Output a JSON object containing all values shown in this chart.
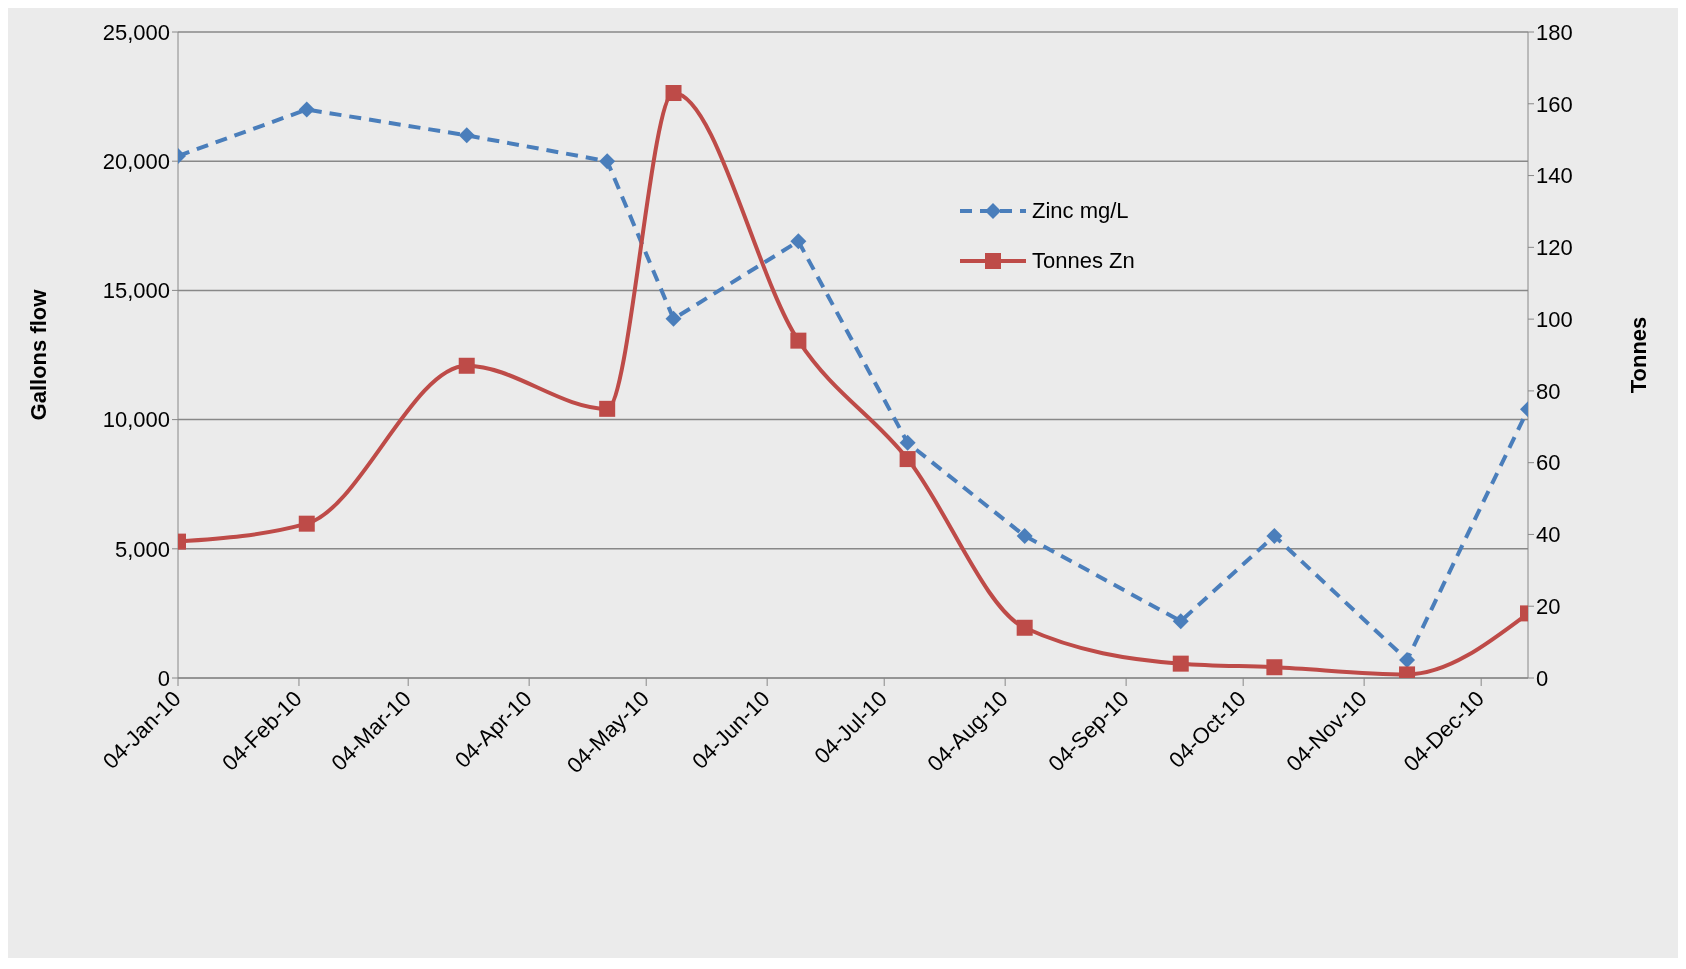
{
  "chart_data": {
    "type": "line",
    "ylabel": "Gallons flow",
    "y2label": "Tonnes",
    "x": [
      "2010-01-04",
      "2010-02-06",
      "2010-03-19",
      "2010-04-24",
      "2010-05-11",
      "2010-06-12",
      "2010-07-10",
      "2010-08-09",
      "2010-09-18",
      "2010-10-12",
      "2010-11-15",
      "2010-12-16"
    ],
    "series": [
      {
        "name": "Zinc mg/L",
        "color": "#4a7ebb",
        "marker": "diamond",
        "line_style": "dashed",
        "values": [
          20200,
          22000,
          21000,
          20000,
          13900,
          16900,
          9100,
          5500,
          2200,
          5500,
          700,
          10400
        ]
      },
      {
        "name": "Tonnes Zn",
        "color": "#be4b48",
        "marker": "square",
        "line_style": "solid",
        "axis": "y2",
        "values": [
          38,
          43,
          87,
          75,
          163,
          94,
          61,
          14,
          4,
          3,
          1,
          18
        ]
      }
    ],
    "xlim": [
      "2010-01-04",
      "2010-12-16"
    ],
    "xticks": [
      {
        "value": "2010-01-04",
        "label": "04-Jan-10"
      },
      {
        "value": "2010-02-04",
        "label": "04-Feb-10"
      },
      {
        "value": "2010-03-04",
        "label": "04-Mar-10"
      },
      {
        "value": "2010-04-04",
        "label": "04-Apr-10"
      },
      {
        "value": "2010-05-04",
        "label": "04-May-10"
      },
      {
        "value": "2010-06-04",
        "label": "04-Jun-10"
      },
      {
        "value": "2010-07-04",
        "label": "04-Jul-10"
      },
      {
        "value": "2010-08-04",
        "label": "04-Aug-10"
      },
      {
        "value": "2010-09-04",
        "label": "04-Sep-10"
      },
      {
        "value": "2010-10-04",
        "label": "04-Oct-10"
      },
      {
        "value": "2010-11-04",
        "label": "04-Nov-10"
      },
      {
        "value": "2010-12-04",
        "label": "04-Dec-10"
      }
    ],
    "ylim": [
      0,
      25000
    ],
    "yticks": [
      0,
      {
        "value": 5000,
        "label": "5,000"
      },
      {
        "value": 10000,
        "label": "10,000"
      },
      {
        "value": 15000,
        "label": "15,000"
      },
      {
        "value": 20000,
        "label": "20,000"
      },
      {
        "value": 25000,
        "label": "25,000"
      }
    ],
    "y2lim": [
      0,
      180
    ],
    "y2ticks": [
      0,
      20,
      40,
      60,
      80,
      100,
      120,
      140,
      160,
      180
    ],
    "grid": "y",
    "legend": "top right"
  }
}
